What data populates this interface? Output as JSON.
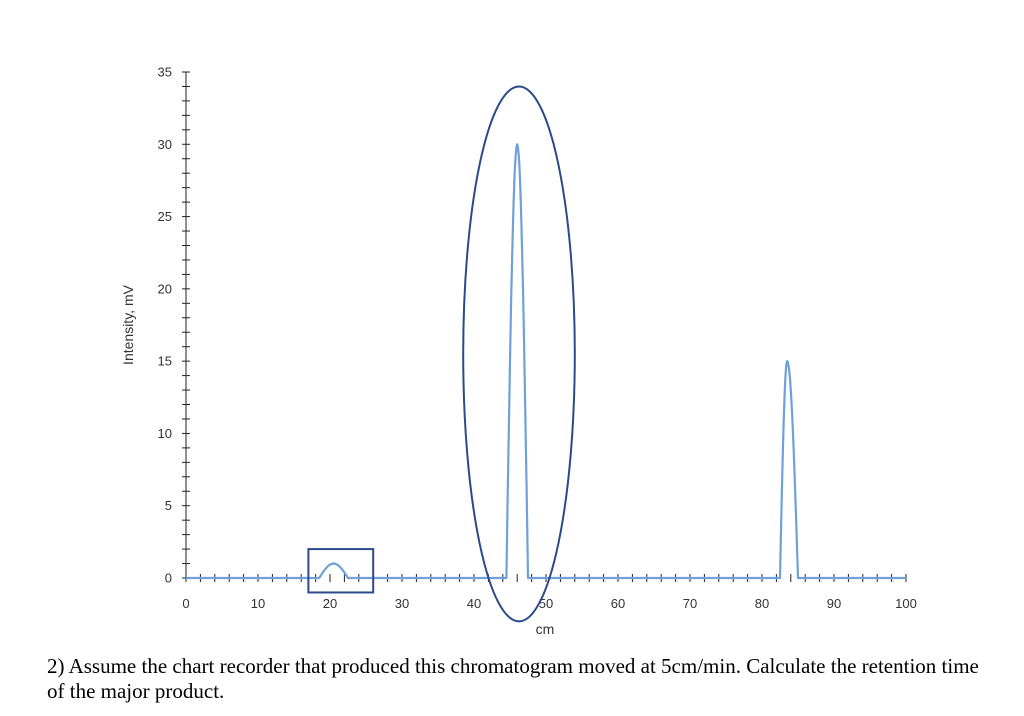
{
  "chart_data": {
    "type": "line",
    "xlabel": "cm",
    "ylabel": "Intensity, mV",
    "xlim": [
      0,
      100
    ],
    "ylim": [
      0,
      35
    ],
    "x_ticks": [
      0,
      10,
      20,
      30,
      40,
      50,
      60,
      70,
      80,
      90,
      100
    ],
    "y_ticks": [
      0,
      5,
      10,
      15,
      20,
      25,
      30,
      35
    ],
    "grid": false,
    "series": [
      {
        "color": "#6fa0d8",
        "peaks": [
          {
            "x_start": 18.5,
            "x_apex": 20.5,
            "x_end": 22.5,
            "height": 1
          },
          {
            "x_start": 44.5,
            "x_apex": 46,
            "x_end": 47.5,
            "height": 30
          },
          {
            "x_start": 82.5,
            "x_apex": 83.5,
            "x_end": 85,
            "height": 15
          }
        ]
      }
    ],
    "annotations": [
      {
        "type": "rectangle",
        "color": "#2a4a8a",
        "x_range": [
          17,
          26
        ],
        "y_range": [
          -1,
          2
        ]
      },
      {
        "type": "ellipse",
        "color": "#2a4a8a",
        "x_range": [
          38.5,
          54
        ],
        "y_range": [
          -3,
          34
        ]
      }
    ]
  },
  "question": "2) Assume the chart recorder that produced this chromatogram moved at 5cm/min. Calculate the retention time of the major product."
}
